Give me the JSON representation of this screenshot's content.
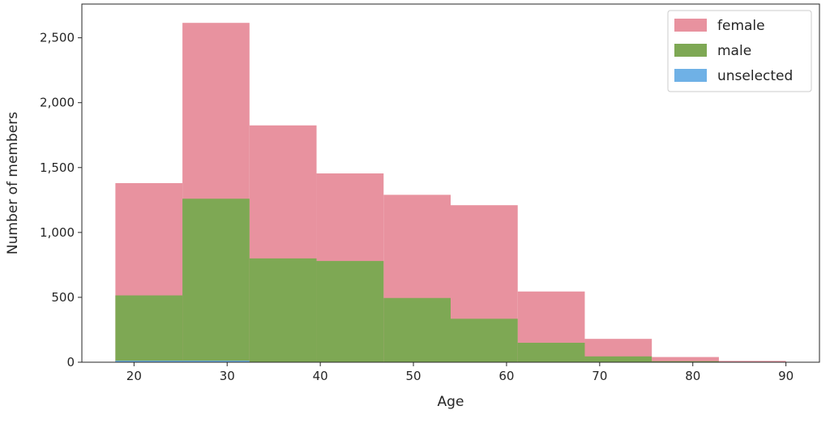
{
  "chart_data": {
    "type": "bar",
    "histogram": true,
    "xlabel": "Age",
    "ylabel": "Number of members",
    "xlim": [
      14.4,
      93.6
    ],
    "ylim": [
      0,
      2760
    ],
    "xticks": [
      20,
      30,
      40,
      50,
      60,
      70,
      80,
      90
    ],
    "yticks": [
      0,
      500,
      1000,
      1500,
      2000,
      2500
    ],
    "ytick_labels": [
      "0",
      "500",
      "1,000",
      "1,500",
      "2,000",
      "2,500"
    ],
    "bin_edges": [
      18,
      25.2,
      32.4,
      39.6,
      46.8,
      54,
      61.2,
      68.4,
      75.6,
      82.8,
      90
    ],
    "series": [
      {
        "name": "female",
        "color": "#e8929f",
        "values": [
          1380,
          2615,
          1825,
          1455,
          1290,
          1210,
          545,
          180,
          40,
          10
        ]
      },
      {
        "name": "male",
        "color": "#7ea854",
        "values": [
          515,
          1260,
          800,
          780,
          495,
          335,
          150,
          45,
          8,
          3
        ]
      },
      {
        "name": "unselected",
        "color": "#6fb1e6",
        "values": [
          12,
          12,
          0,
          0,
          0,
          0,
          0,
          0,
          0,
          0
        ]
      }
    ],
    "legend": {
      "position": "top-right"
    },
    "grid": false
  }
}
